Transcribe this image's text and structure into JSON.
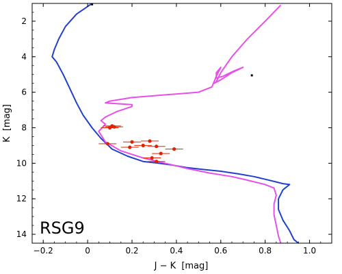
{
  "chart_data": {
    "type": "scatter",
    "title": "",
    "annotation": "RSG9",
    "xlabel": "J − K",
    "xlabel_unit": "[mag]",
    "ylabel": "K",
    "ylabel_unit": "[mag]",
    "xlim": [
      -0.25,
      1.1
    ],
    "ylim": [
      14.5,
      1.0
    ],
    "y_inverted": true,
    "grid": false,
    "x_ticks": [
      -0.2,
      0.0,
      0.2,
      0.4,
      0.6,
      0.8,
      1.0
    ],
    "x_tick_labels": [
      "−0.2",
      "0",
      "0.2",
      "0.4",
      "0.6",
      "0.8",
      "1.0"
    ],
    "y_ticks": [
      2,
      4,
      6,
      8,
      10,
      12,
      14
    ],
    "y_tick_labels": [
      "2",
      "4",
      "6",
      "8",
      "10",
      "12",
      "14"
    ],
    "colors": {
      "blue_isochrone": "#1f3fd0",
      "magenta_isochrone": "#e84ee8",
      "stars": "#e02000",
      "marker": "#000000"
    },
    "series": [
      {
        "type": "line",
        "color": "#1f3fd0",
        "points": [
          [
            0.02,
            1.0
          ],
          [
            -0.05,
            1.6
          ],
          [
            -0.1,
            2.3
          ],
          [
            -0.13,
            3.0
          ],
          [
            -0.15,
            3.6
          ],
          [
            -0.16,
            4.0
          ],
          [
            -0.14,
            4.3
          ],
          [
            -0.11,
            5.0
          ],
          [
            -0.08,
            5.8
          ],
          [
            -0.05,
            6.6
          ],
          [
            -0.02,
            7.3
          ],
          [
            0.02,
            8.0
          ],
          [
            0.06,
            8.6
          ],
          [
            0.11,
            9.2
          ],
          [
            0.18,
            9.6
          ],
          [
            0.25,
            9.9
          ],
          [
            0.32,
            10.0
          ],
          [
            0.38,
            10.1
          ],
          [
            0.45,
            10.25
          ],
          [
            0.52,
            10.35
          ],
          [
            0.6,
            10.45
          ],
          [
            0.68,
            10.6
          ],
          [
            0.75,
            10.75
          ],
          [
            0.8,
            10.9
          ],
          [
            0.85,
            11.05
          ],
          [
            0.88,
            11.15
          ],
          [
            0.91,
            11.2
          ],
          [
            0.88,
            11.5
          ],
          [
            0.86,
            12.0
          ],
          [
            0.86,
            12.6
          ],
          [
            0.88,
            13.2
          ],
          [
            0.91,
            13.8
          ],
          [
            0.93,
            14.3
          ],
          [
            0.95,
            14.5
          ]
        ]
      },
      {
        "type": "line",
        "color": "#e84ee8",
        "points": [
          [
            0.87,
            1.1
          ],
          [
            0.8,
            2.0
          ],
          [
            0.72,
            3.0
          ],
          [
            0.65,
            4.0
          ],
          [
            0.6,
            4.9
          ],
          [
            0.58,
            5.4
          ],
          [
            0.57,
            5.5
          ],
          [
            0.6,
            5.3
          ],
          [
            0.65,
            4.9
          ],
          [
            0.7,
            4.6
          ],
          [
            0.66,
            4.8
          ],
          [
            0.61,
            5.1
          ],
          [
            0.58,
            5.2
          ],
          [
            0.58,
            4.9
          ],
          [
            0.6,
            4.6
          ],
          [
            0.58,
            5.1
          ],
          [
            0.56,
            5.7
          ],
          [
            0.5,
            6.0
          ],
          [
            0.4,
            6.1
          ],
          [
            0.3,
            6.2
          ],
          [
            0.2,
            6.3
          ],
          [
            0.1,
            6.5
          ],
          [
            0.08,
            6.6
          ],
          [
            0.2,
            6.7
          ],
          [
            0.2,
            6.8
          ],
          [
            0.13,
            7.1
          ],
          [
            0.08,
            7.4
          ],
          [
            0.06,
            7.6
          ],
          [
            0.08,
            7.8
          ],
          [
            0.05,
            8.2
          ],
          [
            0.08,
            8.8
          ],
          [
            0.15,
            9.3
          ],
          [
            0.25,
            9.7
          ],
          [
            0.35,
            10.0
          ],
          [
            0.45,
            10.3
          ],
          [
            0.55,
            10.55
          ],
          [
            0.65,
            10.75
          ],
          [
            0.72,
            10.95
          ],
          [
            0.8,
            11.2
          ],
          [
            0.84,
            11.4
          ],
          [
            0.85,
            11.8
          ],
          [
            0.84,
            12.3
          ],
          [
            0.84,
            12.9
          ],
          [
            0.85,
            13.5
          ],
          [
            0.86,
            14.1
          ],
          [
            0.87,
            14.5
          ]
        ]
      },
      {
        "type": "scatter",
        "name": "",
        "color": "#e02000",
        "x": [
          0.1,
          0.11,
          0.12,
          0.09,
          0.19,
          0.2,
          0.25,
          0.28,
          0.31,
          0.39,
          0.33,
          0.29,
          0.31
        ],
        "y": [
          8.0,
          7.9,
          7.95,
          8.9,
          9.1,
          8.8,
          9.0,
          8.75,
          9.05,
          9.2,
          9.45,
          9.7,
          9.9
        ],
        "xerr": [
          0.04,
          0.04,
          0.04,
          0.04,
          0.04,
          0.04,
          0.04,
          0.04,
          0.04,
          0.04,
          0.04,
          0.04,
          0.04
        ]
      },
      {
        "type": "marker",
        "color": "#000000",
        "points": [
          [
            0.74,
            5.05
          ],
          [
            0.02,
            1.05
          ]
        ]
      }
    ]
  }
}
